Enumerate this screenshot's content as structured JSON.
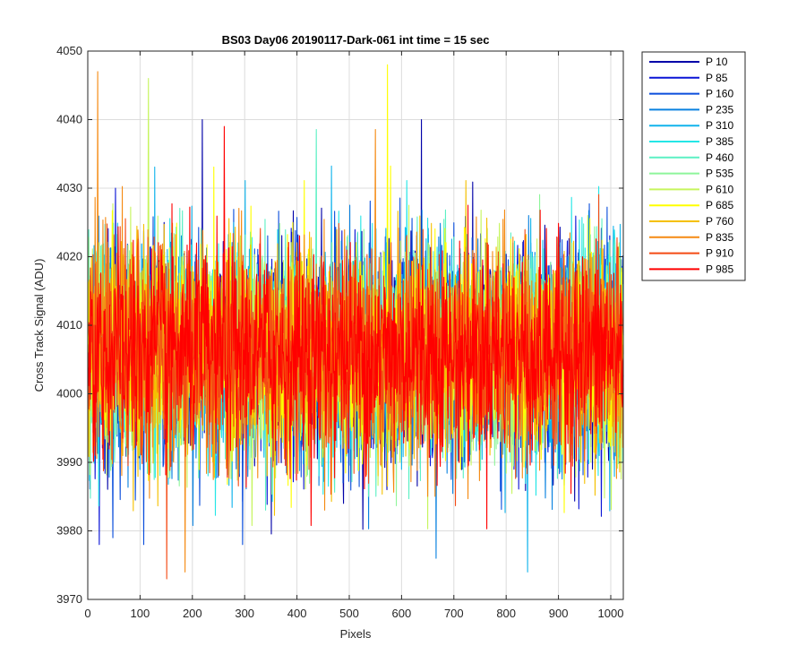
{
  "chart_data": {
    "type": "line",
    "title": "BS03 Day06 20190117-Dark-061 int time = 15 sec",
    "xlabel": "Pixels",
    "ylabel": "Cross Track Signal (ADU)",
    "xlim": [
      0,
      1024
    ],
    "ylim": [
      3970,
      4050
    ],
    "xticks": [
      0,
      100,
      200,
      300,
      400,
      500,
      600,
      700,
      800,
      900,
      1000
    ],
    "yticks": [
      3970,
      3980,
      3990,
      4000,
      4010,
      4020,
      4030,
      4040,
      4050
    ],
    "grid": true,
    "legend_placement": "outside-top-right",
    "series": [
      {
        "name": "P 10",
        "color": "#0000a8",
        "mean": 4006,
        "spread": 8
      },
      {
        "name": "P 85",
        "color": "#0a14d6",
        "mean": 4006,
        "spread": 8
      },
      {
        "name": "P 160",
        "color": "#0a4edc",
        "mean": 4006,
        "spread": 8
      },
      {
        "name": "P 235",
        "color": "#0a82e0",
        "mean": 4006,
        "spread": 8
      },
      {
        "name": "P 310",
        "color": "#12b4ec",
        "mean": 4006,
        "spread": 8
      },
      {
        "name": "P 385",
        "color": "#24e6e6",
        "mean": 4006,
        "spread": 8
      },
      {
        "name": "P 460",
        "color": "#5cf0c4",
        "mean": 4006,
        "spread": 8
      },
      {
        "name": "P 535",
        "color": "#8ef59a",
        "mean": 4006,
        "spread": 8
      },
      {
        "name": "P 610",
        "color": "#c6f55e",
        "mean": 4006,
        "spread": 8
      },
      {
        "name": "P 685",
        "color": "#ffff00",
        "mean": 4006,
        "spread": 8
      },
      {
        "name": "P 760",
        "color": "#f5c000",
        "mean": 4006,
        "spread": 8
      },
      {
        "name": "P 835",
        "color": "#f58a12",
        "mean": 4006,
        "spread": 8
      },
      {
        "name": "P 910",
        "color": "#f44a14",
        "mean": 4006,
        "spread": 8
      },
      {
        "name": "P 985",
        "color": "#ff0000",
        "mean": 4006,
        "spread": 8
      }
    ],
    "annotated_extremes": [
      {
        "series": "P 835",
        "x": 18,
        "y": 4047
      },
      {
        "series": "P 610",
        "x": 115,
        "y": 4046
      },
      {
        "series": "P 685",
        "x": 572,
        "y": 4048
      },
      {
        "series": "P 910",
        "x": 150,
        "y": 3973
      },
      {
        "series": "P 835",
        "x": 185,
        "y": 3974
      },
      {
        "series": "P 310",
        "x": 840,
        "y": 3974
      },
      {
        "series": "P 235",
        "x": 665,
        "y": 3976
      },
      {
        "series": "P 160",
        "x": 295,
        "y": 3978
      },
      {
        "series": "P 160",
        "x": 47,
        "y": 3979
      },
      {
        "series": "P 10",
        "x": 218,
        "y": 4040
      },
      {
        "series": "P 10",
        "x": 637,
        "y": 4040
      },
      {
        "series": "P 985",
        "x": 260,
        "y": 4039
      }
    ]
  }
}
